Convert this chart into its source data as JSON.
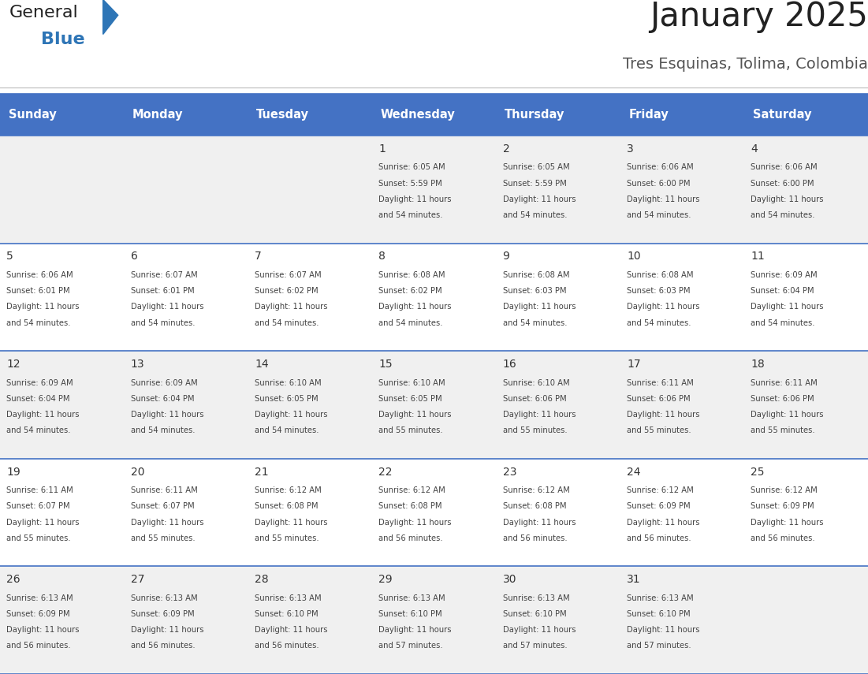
{
  "title": "January 2025",
  "subtitle": "Tres Esquinas, Tolima, Colombia",
  "header_bg": "#4472C4",
  "header_text_color": "#FFFFFF",
  "cell_bg_odd": "#F0F0F0",
  "cell_bg_even": "#FFFFFF",
  "day_number_color": "#333333",
  "cell_text_color": "#444444",
  "divider_color": "#4472C4",
  "days_of_week": [
    "Sunday",
    "Monday",
    "Tuesday",
    "Wednesday",
    "Thursday",
    "Friday",
    "Saturday"
  ],
  "weeks": [
    [
      {
        "day": "",
        "sunrise": "",
        "sunset": "",
        "daylight_h": "",
        "daylight_m": ""
      },
      {
        "day": "",
        "sunrise": "",
        "sunset": "",
        "daylight_h": "",
        "daylight_m": ""
      },
      {
        "day": "",
        "sunrise": "",
        "sunset": "",
        "daylight_h": "",
        "daylight_m": ""
      },
      {
        "day": "1",
        "sunrise": "6:05 AM",
        "sunset": "5:59 PM",
        "daylight_h": "11",
        "daylight_m": "54"
      },
      {
        "day": "2",
        "sunrise": "6:05 AM",
        "sunset": "5:59 PM",
        "daylight_h": "11",
        "daylight_m": "54"
      },
      {
        "day": "3",
        "sunrise": "6:06 AM",
        "sunset": "6:00 PM",
        "daylight_h": "11",
        "daylight_m": "54"
      },
      {
        "day": "4",
        "sunrise": "6:06 AM",
        "sunset": "6:00 PM",
        "daylight_h": "11",
        "daylight_m": "54"
      }
    ],
    [
      {
        "day": "5",
        "sunrise": "6:06 AM",
        "sunset": "6:01 PM",
        "daylight_h": "11",
        "daylight_m": "54"
      },
      {
        "day": "6",
        "sunrise": "6:07 AM",
        "sunset": "6:01 PM",
        "daylight_h": "11",
        "daylight_m": "54"
      },
      {
        "day": "7",
        "sunrise": "6:07 AM",
        "sunset": "6:02 PM",
        "daylight_h": "11",
        "daylight_m": "54"
      },
      {
        "day": "8",
        "sunrise": "6:08 AM",
        "sunset": "6:02 PM",
        "daylight_h": "11",
        "daylight_m": "54"
      },
      {
        "day": "9",
        "sunrise": "6:08 AM",
        "sunset": "6:03 PM",
        "daylight_h": "11",
        "daylight_m": "54"
      },
      {
        "day": "10",
        "sunrise": "6:08 AM",
        "sunset": "6:03 PM",
        "daylight_h": "11",
        "daylight_m": "54"
      },
      {
        "day": "11",
        "sunrise": "6:09 AM",
        "sunset": "6:04 PM",
        "daylight_h": "11",
        "daylight_m": "54"
      }
    ],
    [
      {
        "day": "12",
        "sunrise": "6:09 AM",
        "sunset": "6:04 PM",
        "daylight_h": "11",
        "daylight_m": "54"
      },
      {
        "day": "13",
        "sunrise": "6:09 AM",
        "sunset": "6:04 PM",
        "daylight_h": "11",
        "daylight_m": "54"
      },
      {
        "day": "14",
        "sunrise": "6:10 AM",
        "sunset": "6:05 PM",
        "daylight_h": "11",
        "daylight_m": "54"
      },
      {
        "day": "15",
        "sunrise": "6:10 AM",
        "sunset": "6:05 PM",
        "daylight_h": "11",
        "daylight_m": "55"
      },
      {
        "day": "16",
        "sunrise": "6:10 AM",
        "sunset": "6:06 PM",
        "daylight_h": "11",
        "daylight_m": "55"
      },
      {
        "day": "17",
        "sunrise": "6:11 AM",
        "sunset": "6:06 PM",
        "daylight_h": "11",
        "daylight_m": "55"
      },
      {
        "day": "18",
        "sunrise": "6:11 AM",
        "sunset": "6:06 PM",
        "daylight_h": "11",
        "daylight_m": "55"
      }
    ],
    [
      {
        "day": "19",
        "sunrise": "6:11 AM",
        "sunset": "6:07 PM",
        "daylight_h": "11",
        "daylight_m": "55"
      },
      {
        "day": "20",
        "sunrise": "6:11 AM",
        "sunset": "6:07 PM",
        "daylight_h": "11",
        "daylight_m": "55"
      },
      {
        "day": "21",
        "sunrise": "6:12 AM",
        "sunset": "6:08 PM",
        "daylight_h": "11",
        "daylight_m": "55"
      },
      {
        "day": "22",
        "sunrise": "6:12 AM",
        "sunset": "6:08 PM",
        "daylight_h": "11",
        "daylight_m": "56"
      },
      {
        "day": "23",
        "sunrise": "6:12 AM",
        "sunset": "6:08 PM",
        "daylight_h": "11",
        "daylight_m": "56"
      },
      {
        "day": "24",
        "sunrise": "6:12 AM",
        "sunset": "6:09 PM",
        "daylight_h": "11",
        "daylight_m": "56"
      },
      {
        "day": "25",
        "sunrise": "6:12 AM",
        "sunset": "6:09 PM",
        "daylight_h": "11",
        "daylight_m": "56"
      }
    ],
    [
      {
        "day": "26",
        "sunrise": "6:13 AM",
        "sunset": "6:09 PM",
        "daylight_h": "11",
        "daylight_m": "56"
      },
      {
        "day": "27",
        "sunrise": "6:13 AM",
        "sunset": "6:09 PM",
        "daylight_h": "11",
        "daylight_m": "56"
      },
      {
        "day": "28",
        "sunrise": "6:13 AM",
        "sunset": "6:10 PM",
        "daylight_h": "11",
        "daylight_m": "56"
      },
      {
        "day": "29",
        "sunrise": "6:13 AM",
        "sunset": "6:10 PM",
        "daylight_h": "11",
        "daylight_m": "57"
      },
      {
        "day": "30",
        "sunrise": "6:13 AM",
        "sunset": "6:10 PM",
        "daylight_h": "11",
        "daylight_m": "57"
      },
      {
        "day": "31",
        "sunrise": "6:13 AM",
        "sunset": "6:10 PM",
        "daylight_h": "11",
        "daylight_m": "57"
      },
      {
        "day": "",
        "sunrise": "",
        "sunset": "",
        "daylight_h": "",
        "daylight_m": ""
      }
    ]
  ],
  "logo_general_color": "#222222",
  "logo_blue_color": "#2E75B6"
}
